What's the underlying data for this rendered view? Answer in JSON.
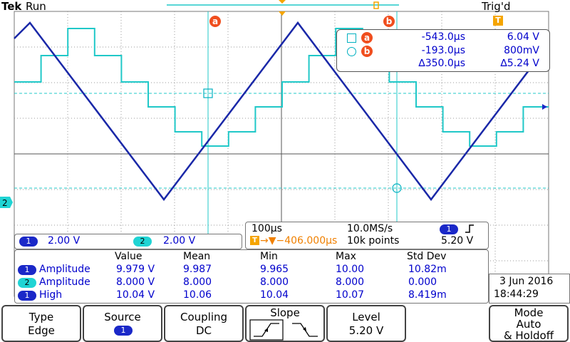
{
  "status": {
    "brand": "Tek",
    "run_state": "Run",
    "trigger_state": "Trig'd"
  },
  "colors": {
    "ch1": "#1a28c8",
    "ch2": "#20d4d4",
    "cursor": "#00b0c0",
    "marker": "#f04e1e",
    "trigger": "#f5a500",
    "grid": "#9a9a9a"
  },
  "cursors": {
    "a": {
      "label": "a",
      "time": "-543.0µs",
      "value": "6.04 V"
    },
    "b": {
      "label": "b",
      "time": "-193.0µs",
      "value": "800mV"
    },
    "delta": {
      "time": "∆350.0µs",
      "value": "∆5.24 V"
    }
  },
  "channels": {
    "ch1": {
      "number": "1",
      "scale": "2.00 V"
    },
    "ch2": {
      "number": "2",
      "scale": "2.00 V"
    }
  },
  "horizontal": {
    "scale": "100µs",
    "sample_rate": "10.0MS/s",
    "position": "→▼−406.000µs",
    "record_length": "10k points",
    "trigger_source": "1",
    "trigger_slope_icon": "rising-edge-icon",
    "trigger_level": "5.20 V"
  },
  "measurements": {
    "headers": [
      "Value",
      "Mean",
      "Min",
      "Max",
      "Std Dev"
    ],
    "rows": [
      {
        "channel": "1",
        "name": "Amplitude",
        "value": "9.979 V",
        "mean": "9.987",
        "min": "9.965",
        "max": "10.00",
        "std": "10.82m"
      },
      {
        "channel": "2",
        "name": "Amplitude",
        "value": "8.000 V",
        "mean": "8.000",
        "min": "8.000",
        "max": "8.000",
        "std": "0.000"
      },
      {
        "channel": "1",
        "name": "High",
        "value": "10.04 V",
        "mean": "10.06",
        "min": "10.04",
        "max": "10.07",
        "std": "8.419m"
      }
    ]
  },
  "datetime": {
    "date": "3 Jun 2016",
    "time": "18:44:29"
  },
  "menu": {
    "type": {
      "label": "Type",
      "value": "Edge"
    },
    "source": {
      "label": "Source",
      "value": "1"
    },
    "coupling": {
      "label": "Coupling",
      "value": "DC"
    },
    "slope": {
      "label": "Slope"
    },
    "level": {
      "label": "Level",
      "value": "5.20 V"
    },
    "mode": {
      "line1": "Mode",
      "line2": "Auto",
      "line3": "& Holdoff"
    }
  },
  "markers": {
    "ch2_ground": "2",
    "trigger_t": "T"
  }
}
